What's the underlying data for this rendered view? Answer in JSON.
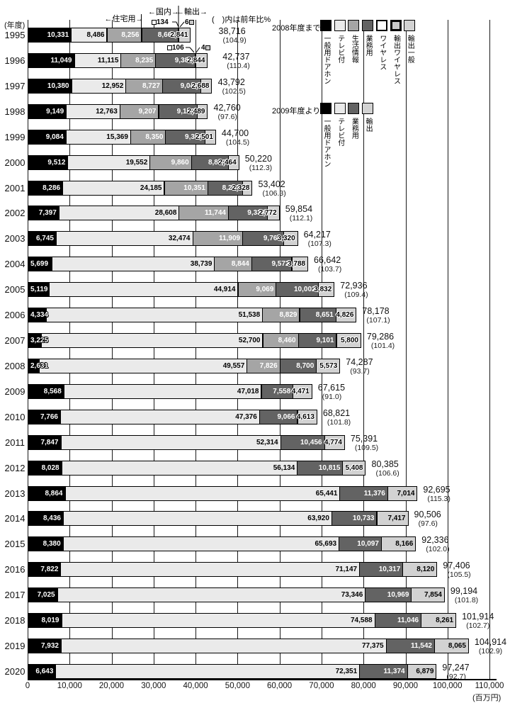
{
  "chart_data": {
    "type": "bar",
    "orientation": "horizontal-stacked",
    "title": "",
    "axis_year_label": "(年度)",
    "unit_label": "(百万円)",
    "note": "(　)内は前年比%",
    "xlim": [
      0,
      110000
    ],
    "x_ticks": [
      "0",
      "10,000",
      "20,000",
      "30,000",
      "40,000",
      "50,000",
      "60,000",
      "70,000",
      "80,000",
      "90,000",
      "100,000",
      "110,000"
    ],
    "grid": "vertical",
    "span_labels": [
      "←住宅用→",
      "←国内→",
      "←輸出→"
    ],
    "callouts": [
      {
        "year": "1995",
        "label": "134",
        "marker": "wireless",
        "marker_side": "left"
      },
      {
        "year": "1995",
        "label": "6",
        "marker": "exw",
        "marker_side": "right"
      },
      {
        "year": "1996",
        "label": "106",
        "marker": "wireless",
        "marker_side": "left"
      },
      {
        "year": "1996",
        "label": "4",
        "marker": "exw",
        "marker_side": "right"
      }
    ],
    "rows": [
      {
        "year": "1995",
        "segs": [
          [
            "general",
            10331,
            "10,331"
          ],
          [
            "tv",
            8486,
            "8,486"
          ],
          [
            "info",
            8256,
            "8,256"
          ],
          [
            "biz",
            8662,
            "8,662"
          ],
          [
            "wireless",
            134,
            null
          ],
          [
            "exw",
            6,
            null
          ],
          [
            "export",
            2841,
            "2,841"
          ]
        ],
        "total": "38,716",
        "yoy": "(104.9)",
        "total_dx": 40
      },
      {
        "year": "1996",
        "segs": [
          [
            "general",
            11049,
            "11,049"
          ],
          [
            "tv",
            11115,
            "11,115"
          ],
          [
            "info",
            8235,
            "8,235"
          ],
          [
            "biz",
            9384,
            "9,384"
          ],
          [
            "wireless",
            106,
            null
          ],
          [
            "exw",
            4,
            null
          ],
          [
            "export",
            2844,
            "2,844"
          ]
        ],
        "total": "42,737",
        "yoy": "(110.4)",
        "total_dx": 22
      },
      {
        "year": "1997",
        "segs": [
          [
            "general",
            10380,
            "10,380"
          ],
          [
            "tv",
            12952,
            "12,952"
          ],
          [
            "info",
            8727,
            "8,727"
          ],
          [
            "biz",
            9045,
            "9,045"
          ],
          [
            "export",
            2688,
            "2,688"
          ]
        ],
        "total": "43,792",
        "yoy": "(102.5)"
      },
      {
        "year": "1998",
        "segs": [
          [
            "general",
            9149,
            "9,149"
          ],
          [
            "tv",
            12763,
            "12,763"
          ],
          [
            "info",
            9207,
            "9,207"
          ],
          [
            "biz",
            9152,
            "9,152"
          ],
          [
            "export",
            2489,
            "2,489"
          ]
        ],
        "total": "42,760",
        "yoy": "(97.6)"
      },
      {
        "year": "1999",
        "segs": [
          [
            "general",
            9084,
            "9,084"
          ],
          [
            "tv",
            15369,
            "15,369"
          ],
          [
            "info",
            8350,
            "8,350"
          ],
          [
            "biz",
            9396,
            "9,396"
          ],
          [
            "export",
            2501,
            "2,501"
          ]
        ],
        "total": "44,700",
        "yoy": "(104.5)"
      },
      {
        "year": "2000",
        "segs": [
          [
            "general",
            9512,
            "9,512"
          ],
          [
            "tv",
            19552,
            "19,552"
          ],
          [
            "info",
            9860,
            "9,860"
          ],
          [
            "biz",
            8832,
            "8,832"
          ],
          [
            "export",
            2464,
            "2,464"
          ]
        ],
        "total": "50,220",
        "yoy": "(112.3)"
      },
      {
        "year": "2001",
        "segs": [
          [
            "general",
            8286,
            "8,286"
          ],
          [
            "tv",
            24185,
            "24,185"
          ],
          [
            "info",
            10351,
            "10,351"
          ],
          [
            "biz",
            8252,
            "8,252"
          ],
          [
            "export",
            2328,
            "2,328"
          ]
        ],
        "total": "53,402",
        "yoy": "(106.3)"
      },
      {
        "year": "2002",
        "segs": [
          [
            "general",
            7397,
            "7,397"
          ],
          [
            "tv",
            28608,
            "28,608"
          ],
          [
            "info",
            11744,
            "11,744"
          ],
          [
            "biz",
            9333,
            "9,333"
          ],
          [
            "export",
            2772,
            "2,772"
          ]
        ],
        "total": "59,854",
        "yoy": "(112.1)"
      },
      {
        "year": "2003",
        "segs": [
          [
            "general",
            6745,
            "6,745"
          ],
          [
            "tv",
            32474,
            "32,474"
          ],
          [
            "info",
            11909,
            "11,909"
          ],
          [
            "biz",
            9769,
            "9,769"
          ],
          [
            "export",
            3320,
            "3,320"
          ]
        ],
        "total": "64,217",
        "yoy": "(107.3)"
      },
      {
        "year": "2004",
        "segs": [
          [
            "general",
            5699,
            "5,699"
          ],
          [
            "tv",
            38739,
            "38,739"
          ],
          [
            "info",
            8844,
            "8,844"
          ],
          [
            "biz",
            9572,
            "9,572"
          ],
          [
            "export",
            3788,
            "3,788"
          ]
        ],
        "total": "66,642",
        "yoy": "(103.7)"
      },
      {
        "year": "2005",
        "segs": [
          [
            "general",
            5119,
            "5,119"
          ],
          [
            "tv",
            44914,
            "44,914"
          ],
          [
            "info",
            9069,
            "9,069"
          ],
          [
            "biz",
            10002,
            "10,002"
          ],
          [
            "export",
            3832,
            "3,832"
          ]
        ],
        "total": "72,936",
        "yoy": "(109.4)"
      },
      {
        "year": "2006",
        "segs": [
          [
            "general",
            4334,
            "4,334"
          ],
          [
            "tv",
            51538,
            "51,538"
          ],
          [
            "info",
            8829,
            "8,829"
          ],
          [
            "biz",
            8651,
            "8,651"
          ],
          [
            "export",
            4826,
            "4,826"
          ]
        ],
        "total": "78,178",
        "yoy": "(107.1)"
      },
      {
        "year": "2007",
        "segs": [
          [
            "general",
            3225,
            "3,225"
          ],
          [
            "tv",
            52700,
            "52,700"
          ],
          [
            "info",
            8460,
            "8,460"
          ],
          [
            "biz",
            9101,
            "9,101"
          ],
          [
            "export",
            5800,
            "5,800"
          ]
        ],
        "total": "79,286",
        "yoy": "(101.4)"
      },
      {
        "year": "2008",
        "segs": [
          [
            "general",
            2631,
            "2,631"
          ],
          [
            "tv",
            49557,
            "49,557"
          ],
          [
            "info",
            7826,
            "7,826"
          ],
          [
            "biz",
            8700,
            "8,700"
          ],
          [
            "export",
            5573,
            "5,573"
          ]
        ],
        "total": "74,287",
        "yoy": "(93.7)"
      },
      {
        "year": "2009",
        "segs": [
          [
            "general",
            8568,
            "8,568"
          ],
          [
            "tv",
            47018,
            "47,018"
          ],
          [
            "biz",
            7558,
            "7,558"
          ],
          [
            "export",
            4471,
            "4,471"
          ]
        ],
        "total": "67,615",
        "yoy": "(91.0)"
      },
      {
        "year": "2010",
        "segs": [
          [
            "general",
            7766,
            "7,766"
          ],
          [
            "tv",
            47376,
            "47,376"
          ],
          [
            "biz",
            9066,
            "9,066"
          ],
          [
            "export",
            4613,
            "4,613"
          ]
        ],
        "total": "68,821",
        "yoy": "(101.8)"
      },
      {
        "year": "2011",
        "segs": [
          [
            "general",
            7847,
            "7,847"
          ],
          [
            "tv",
            52314,
            "52,314"
          ],
          [
            "biz",
            10456,
            "10,456"
          ],
          [
            "export",
            4774,
            "4,774"
          ]
        ],
        "total": "75,391",
        "yoy": "(109.5)"
      },
      {
        "year": "2012",
        "segs": [
          [
            "general",
            8028,
            "8,028"
          ],
          [
            "tv",
            56134,
            "56,134"
          ],
          [
            "biz",
            10815,
            "10,815"
          ],
          [
            "export",
            5408,
            "5,408"
          ]
        ],
        "total": "80,385",
        "yoy": "(106.6)"
      },
      {
        "year": "2013",
        "segs": [
          [
            "general",
            8864,
            "8,864"
          ],
          [
            "tv",
            65441,
            "65,441"
          ],
          [
            "biz",
            11376,
            "11,376"
          ],
          [
            "export",
            7014,
            "7,014"
          ]
        ],
        "total": "92,695",
        "yoy": "(115.3)"
      },
      {
        "year": "2014",
        "segs": [
          [
            "general",
            8436,
            "8,436"
          ],
          [
            "tv",
            63920,
            "63,920"
          ],
          [
            "biz",
            10733,
            "10,733"
          ],
          [
            "export",
            7417,
            "7,417"
          ]
        ],
        "total": "90,506",
        "yoy": "(97.6)"
      },
      {
        "year": "2015",
        "segs": [
          [
            "general",
            8380,
            "8,380"
          ],
          [
            "tv",
            65693,
            "65,693"
          ],
          [
            "biz",
            10097,
            "10,097"
          ],
          [
            "export",
            8166,
            "8,166"
          ]
        ],
        "total": "92,336",
        "yoy": "(102.0)"
      },
      {
        "year": "2016",
        "segs": [
          [
            "general",
            7822,
            "7,822"
          ],
          [
            "tv",
            71147,
            "71,147"
          ],
          [
            "biz",
            10317,
            "10,317"
          ],
          [
            "export",
            8120,
            "8,120"
          ]
        ],
        "total": "97,406",
        "yoy": "(105.5)"
      },
      {
        "year": "2017",
        "segs": [
          [
            "general",
            7025,
            "7,025"
          ],
          [
            "tv",
            73346,
            "73,346"
          ],
          [
            "biz",
            10969,
            "10,969"
          ],
          [
            "export",
            7854,
            "7,854"
          ]
        ],
        "total": "99,194",
        "yoy": "(101.8)"
      },
      {
        "year": "2018",
        "segs": [
          [
            "general",
            8019,
            "8,019"
          ],
          [
            "tv",
            74588,
            "74,588"
          ],
          [
            "biz",
            11046,
            "11,046"
          ],
          [
            "export",
            8261,
            "8,261"
          ]
        ],
        "total": "101,914",
        "yoy": "(102.7)"
      },
      {
        "year": "2019",
        "segs": [
          [
            "general",
            7932,
            "7,932"
          ],
          [
            "tv",
            77375,
            "77,375"
          ],
          [
            "biz",
            11542,
            "11,542"
          ],
          [
            "export",
            8065,
            "8,065"
          ]
        ],
        "total": "104,914",
        "yoy": "(102.9)"
      },
      {
        "year": "2020",
        "segs": [
          [
            "general",
            6643,
            "6,643"
          ],
          [
            "tv",
            72351,
            "72,351"
          ],
          [
            "biz",
            11374,
            "11,374"
          ],
          [
            "export",
            6879,
            "6,879"
          ]
        ],
        "total": "97,247",
        "yoy": "(92.7)"
      }
    ]
  },
  "legend": {
    "until_2008": {
      "title": "2008年度まで:",
      "items": [
        {
          "label": "一般用ドアホン",
          "cat": "general"
        },
        {
          "label": "テレビ付",
          "cat": "tv"
        },
        {
          "label": "生活情報",
          "cat": "info"
        },
        {
          "label": "業務用",
          "cat": "biz"
        },
        {
          "label": "ワイヤレス",
          "cat": "wireless"
        },
        {
          "label": "輸出ワイヤレス",
          "cat": "exw"
        },
        {
          "label": "輸出一般",
          "cat": "export"
        }
      ]
    },
    "from_2009": {
      "title": "2009年度より:",
      "items": [
        {
          "label": "一般用ドアホン",
          "cat": "general"
        },
        {
          "label": "テレビ付",
          "cat": "tv"
        },
        {
          "label": "業務用",
          "cat": "biz"
        },
        {
          "label": "輸出",
          "cat": "export"
        }
      ]
    }
  },
  "colors": {
    "general": "#000000",
    "tv": "#eaeaea",
    "info": "#a5a5a5",
    "biz": "#636363",
    "wireless": "#ffffff",
    "exw": "#c9c9c9",
    "export": "#d2d2d2",
    "grid": "#1a1a1a"
  }
}
